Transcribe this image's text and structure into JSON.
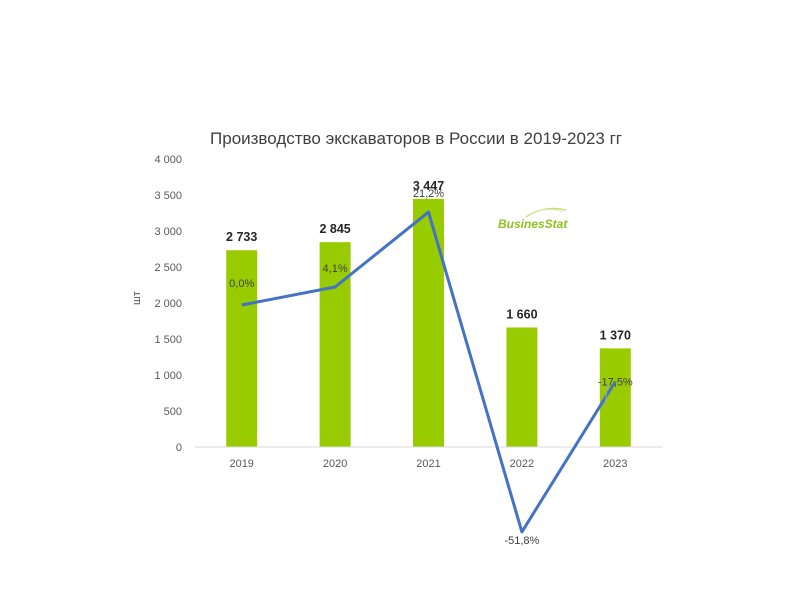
{
  "chart_data": {
    "type": "bar",
    "title": "Производство экскаваторов в России в 2019-2023 гг",
    "ylabel": "шт",
    "xlabel": "",
    "ylim": [
      0,
      4000
    ],
    "yticks": [
      0,
      500,
      1000,
      1500,
      2000,
      2500,
      3000,
      3500,
      4000
    ],
    "ytick_labels": [
      "0",
      "500",
      "1 000",
      "1 500",
      "2 000",
      "2 500",
      "3 000",
      "3 500",
      "4 000"
    ],
    "categories": [
      "2019",
      "2020",
      "2021",
      "2022",
      "2023"
    ],
    "values": [
      2733,
      2845,
      3447,
      1660,
      1370
    ],
    "value_labels": [
      "2 733",
      "2 845",
      "3 447",
      "1 660",
      "1 370"
    ],
    "bar_color": "#99cc00",
    "growth_line": {
      "values": [
        0.0,
        4.1,
        21.2,
        -51.8,
        -17.5
      ],
      "labels": [
        "0,0%",
        "4,1%",
        "21,2%",
        "-51,8%",
        "-17,5%"
      ],
      "color": "#4472c4"
    },
    "grid": false,
    "legend": "none",
    "watermark": "BusinesStat"
  }
}
